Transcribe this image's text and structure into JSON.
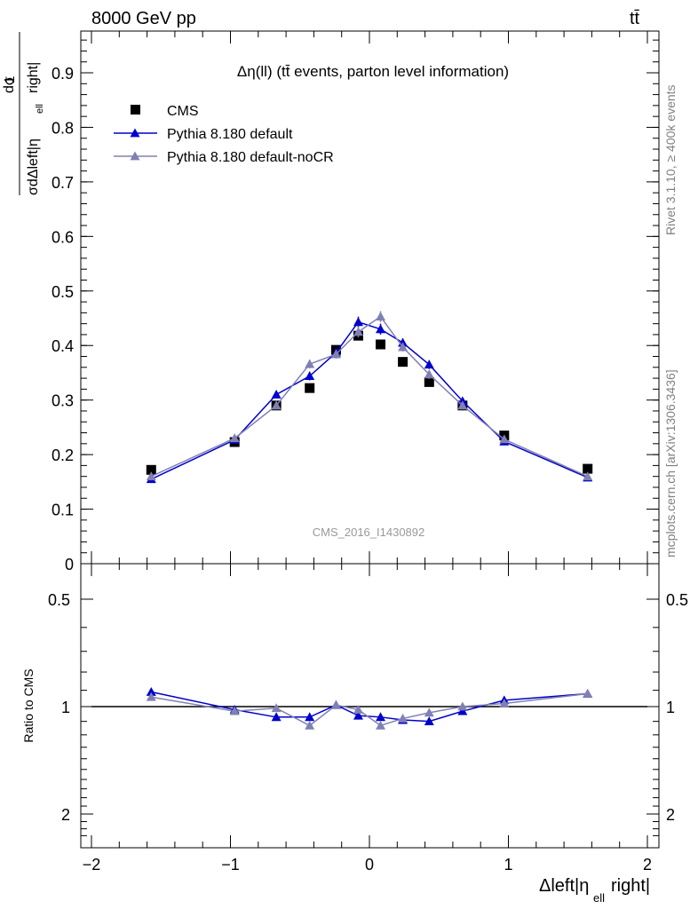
{
  "header": {
    "left": "8000 GeV pp",
    "right": "tt̄"
  },
  "side_text": {
    "rivet": "Rivet 3.1.10, ≥ 400k events",
    "mcplots": "mcplots.cern.ch [arXiv:1306.3436]"
  },
  "chart_data": [
    {
      "type": "scatter",
      "panel": "main",
      "title": "Δη(ll) (tt̄ events, parton level information)",
      "ylabel": "1/σ dσ/dΔleft|η_ell right|",
      "watermark": "CMS_2016_I1430892",
      "xlim": [
        -2.2,
        2.2
      ],
      "ylim": [
        0,
        0.98
      ],
      "x_ticks": [
        -2,
        -1,
        0,
        1,
        2
      ],
      "y_ticks": [
        0,
        0.1,
        0.2,
        0.3,
        0.4,
        0.5,
        0.6,
        0.7,
        0.8,
        0.9
      ],
      "y_tick_labels": [
        "0",
        "0.1",
        "0.2",
        "0.3",
        "0.4",
        "0.5",
        "0.6",
        "0.7",
        "0.8",
        "0.9"
      ],
      "legend": {
        "placement": "top-left",
        "entries": [
          "CMS",
          "Pythia 8.180 default",
          "Pythia 8.180 default-noCR"
        ]
      },
      "x": [
        -1.57,
        -0.97,
        -0.67,
        -0.43,
        -0.24,
        -0.08,
        0.08,
        0.24,
        0.43,
        0.67,
        0.97,
        1.57
      ],
      "series": [
        {
          "name": "CMS",
          "marker": "square",
          "color": "#000000",
          "values": [
            0.172,
            0.223,
            0.29,
            0.322,
            0.392,
            0.418,
            0.402,
            0.37,
            0.333,
            0.29,
            0.235,
            0.174
          ]
        },
        {
          "name": "Pythia 8.180 default",
          "marker": "triangle",
          "color": "#0000cc",
          "values": [
            0.155,
            0.227,
            0.31,
            0.344,
            0.387,
            0.443,
            0.43,
            0.405,
            0.365,
            0.298,
            0.224,
            0.158
          ],
          "errors": [
            0.003,
            0.004,
            0.007,
            0.008,
            0.008,
            0.01,
            0.01,
            0.008,
            0.008,
            0.006,
            0.004,
            0.003
          ]
        },
        {
          "name": "Pythia 8.180 default-noCR",
          "marker": "triangle",
          "color": "#8080b3",
          "values": [
            0.16,
            0.23,
            0.29,
            0.366,
            0.384,
            0.425,
            0.453,
            0.397,
            0.347,
            0.29,
            0.228,
            0.16
          ],
          "errors": [
            0.003,
            0.004,
            0.007,
            0.008,
            0.008,
            0.01,
            0.01,
            0.008,
            0.008,
            0.006,
            0.004,
            0.003
          ]
        }
      ]
    },
    {
      "type": "scatter",
      "panel": "ratio",
      "ylabel": "Ratio to CMS",
      "xlabel": "Δleft|η_ell right|",
      "xlim": [
        -2.2,
        2.2
      ],
      "ylim": [
        0.4,
        2.4
      ],
      "y_scale": "log",
      "x_ticks": [
        -2,
        -1,
        0,
        1,
        2
      ],
      "x_tick_labels": [
        "−2",
        "−1",
        "0",
        "1",
        "2"
      ],
      "y_ticks": [
        0.5,
        1,
        2
      ],
      "y_tick_labels": [
        "0.5",
        "1",
        "2"
      ],
      "reference_band": {
        "inner": 0.02,
        "outer": 0.045,
        "inner_color": "#ccee66",
        "outer_color": "#ffff99"
      },
      "x": [
        -1.57,
        -0.97,
        -0.67,
        -0.43,
        -0.24,
        -0.08,
        0.08,
        0.24,
        0.43,
        0.67,
        0.97,
        1.57
      ],
      "series": [
        {
          "name": "Pythia 8.180 default",
          "color": "#0000cc",
          "values": [
            0.91,
            1.02,
            1.07,
            1.07,
            0.99,
            1.06,
            1.07,
            1.09,
            1.1,
            1.03,
            0.96,
            0.92
          ],
          "errors": [
            0.01,
            0.015,
            0.02,
            0.02,
            0.015,
            0.02,
            0.02,
            0.02,
            0.02,
            0.02,
            0.015,
            0.01
          ]
        },
        {
          "name": "Pythia 8.180 default-noCR",
          "color": "#8080b3",
          "values": [
            0.94,
            1.03,
            1.01,
            1.13,
            0.99,
            1.02,
            1.13,
            1.08,
            1.04,
            1.0,
            0.98,
            0.92
          ],
          "errors": [
            0.01,
            0.015,
            0.02,
            0.02,
            0.015,
            0.02,
            0.02,
            0.02,
            0.02,
            0.02,
            0.015,
            0.01
          ]
        }
      ]
    }
  ]
}
